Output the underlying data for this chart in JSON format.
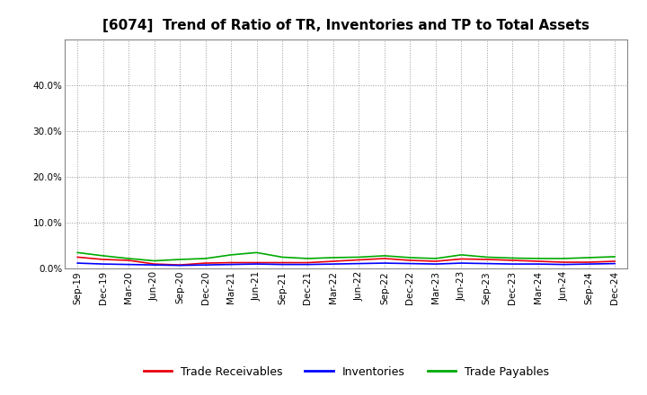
{
  "title": "[6074]  Trend of Ratio of TR, Inventories and TP to Total Assets",
  "x_labels": [
    "Sep-19",
    "Dec-19",
    "Mar-20",
    "Jun-20",
    "Sep-20",
    "Dec-20",
    "Mar-21",
    "Jun-21",
    "Sep-21",
    "Dec-21",
    "Mar-22",
    "Jun-22",
    "Sep-22",
    "Dec-22",
    "Mar-23",
    "Jun-23",
    "Sep-23",
    "Dec-23",
    "Mar-24",
    "Jun-24",
    "Sep-24",
    "Dec-24"
  ],
  "trade_receivables": [
    0.025,
    0.02,
    0.018,
    0.01,
    0.008,
    0.012,
    0.013,
    0.013,
    0.013,
    0.013,
    0.016,
    0.019,
    0.022,
    0.018,
    0.016,
    0.021,
    0.02,
    0.018,
    0.016,
    0.014,
    0.014,
    0.016
  ],
  "inventories": [
    0.012,
    0.01,
    0.009,
    0.008,
    0.007,
    0.008,
    0.009,
    0.01,
    0.009,
    0.009,
    0.01,
    0.011,
    0.012,
    0.011,
    0.01,
    0.012,
    0.011,
    0.01,
    0.01,
    0.009,
    0.01,
    0.011
  ],
  "trade_payables": [
    0.035,
    0.028,
    0.022,
    0.017,
    0.02,
    0.022,
    0.03,
    0.035,
    0.025,
    0.022,
    0.024,
    0.025,
    0.028,
    0.024,
    0.022,
    0.03,
    0.025,
    0.023,
    0.022,
    0.022,
    0.024,
    0.026
  ],
  "tr_color": "#e8000d",
  "inv_color": "#0000ff",
  "tp_color": "#00aa00",
  "bg_color": "#ffffff",
  "plot_bg_color": "#ffffff",
  "grid_color": "#999999",
  "ylim": [
    0.0,
    0.5
  ],
  "yticks": [
    0.0,
    0.1,
    0.2,
    0.3,
    0.4
  ],
  "legend_labels": [
    "Trade Receivables",
    "Inventories",
    "Trade Payables"
  ],
  "title_fontsize": 11,
  "tick_fontsize": 7.5,
  "legend_fontsize": 9
}
